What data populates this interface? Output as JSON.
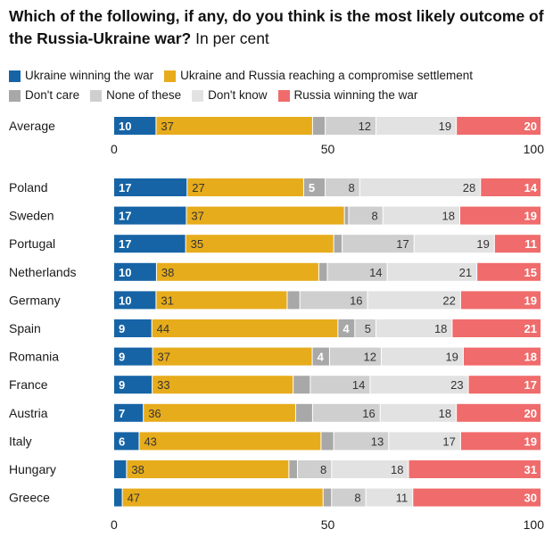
{
  "chart_data": {
    "type": "stacked-bar-horizontal",
    "title": "Which of the following, if any, do you think is the most likely outcome of the Russia-Ukraine war?",
    "subtitle": "In per cent",
    "xlim": [
      0,
      100
    ],
    "ticks": [
      0,
      50,
      100
    ],
    "legend": [
      {
        "label": "Ukraine winning the war",
        "color": "#1664a6"
      },
      {
        "label": "Ukraine and Russia reaching a compromise settlement",
        "color": "#e7ac1c"
      },
      {
        "label": "Don't care",
        "color": "#a8a8a8"
      },
      {
        "label": "None of these",
        "color": "#cfcfcf"
      },
      {
        "label": "Don't know",
        "color": "#e2e2e2"
      },
      {
        "label": "Russia winning the war",
        "color": "#f06b6b"
      }
    ],
    "average": {
      "label": "Average",
      "values": [
        10,
        37,
        3,
        12,
        19,
        20
      ],
      "labels": [
        "10",
        "37",
        "",
        "12",
        "19",
        "20"
      ]
    },
    "countries": [
      {
        "label": "Poland",
        "values": [
          17,
          27,
          5,
          8,
          28,
          14
        ],
        "labels": [
          "17",
          "27",
          "5",
          "8",
          "28",
          "14"
        ]
      },
      {
        "label": "Sweden",
        "values": [
          17,
          37,
          1,
          8,
          18,
          19
        ],
        "labels": [
          "17",
          "37",
          "",
          "8",
          "18",
          "19"
        ]
      },
      {
        "label": "Portugal",
        "values": [
          17,
          35,
          2,
          17,
          19,
          11
        ],
        "labels": [
          "17",
          "35",
          "",
          "17",
          "19",
          "11"
        ]
      },
      {
        "label": "Netherlands",
        "values": [
          10,
          38,
          2,
          14,
          21,
          15
        ],
        "labels": [
          "10",
          "38",
          "",
          "14",
          "21",
          "15"
        ]
      },
      {
        "label": "Germany",
        "values": [
          10,
          31,
          3,
          16,
          22,
          19
        ],
        "labels": [
          "10",
          "31",
          "",
          "16",
          "22",
          "19"
        ]
      },
      {
        "label": "Spain",
        "values": [
          9,
          44,
          4,
          5,
          18,
          21
        ],
        "labels": [
          "9",
          "44",
          "4",
          "5",
          "18",
          "21"
        ]
      },
      {
        "label": "Romania",
        "values": [
          9,
          37,
          4,
          12,
          19,
          18
        ],
        "labels": [
          "9",
          "37",
          "4",
          "12",
          "19",
          "18"
        ]
      },
      {
        "label": "France",
        "values": [
          9,
          33,
          4,
          14,
          23,
          17
        ],
        "labels": [
          "9",
          "33",
          "",
          "14",
          "23",
          "17"
        ]
      },
      {
        "label": "Austria",
        "values": [
          7,
          36,
          4,
          16,
          18,
          20
        ],
        "labels": [
          "7",
          "36",
          "",
          "16",
          "18",
          "20"
        ]
      },
      {
        "label": "Italy",
        "values": [
          6,
          43,
          3,
          13,
          17,
          19
        ],
        "labels": [
          "6",
          "43",
          "",
          "13",
          "17",
          "19"
        ]
      },
      {
        "label": "Hungary",
        "values": [
          3,
          38,
          2,
          8,
          18,
          31
        ],
        "labels": [
          "",
          "38",
          "",
          "8",
          "18",
          "31"
        ]
      },
      {
        "label": "Greece",
        "values": [
          2,
          47,
          2,
          8,
          11,
          30
        ],
        "labels": [
          "",
          "47",
          "",
          "8",
          "11",
          "30"
        ]
      }
    ]
  }
}
